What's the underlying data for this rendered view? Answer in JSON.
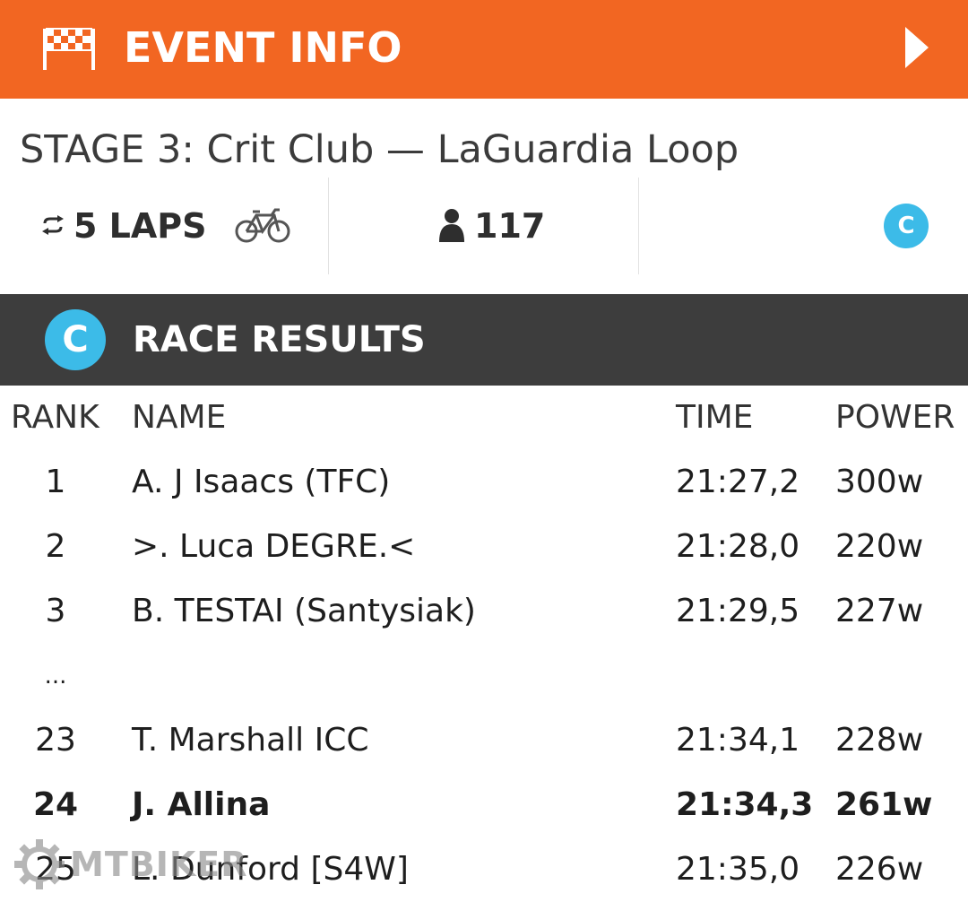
{
  "header": {
    "title": "EVENT INFO",
    "flag_icon": "checkered-flag-icon",
    "next_icon": "play-arrow-icon",
    "bg_color": "#f26622"
  },
  "event": {
    "stage_title": "STAGE 3: Crit Club — LaGuardia Loop",
    "laps": "5 LAPS",
    "riders": "117",
    "category_badge": "C"
  },
  "results_header": {
    "badge": "C",
    "title": "RACE RESULTS",
    "bg_color": "#3d3d3d",
    "badge_color": "#3cbbe8"
  },
  "table": {
    "columns": [
      "RANK",
      "NAME",
      "TIME",
      "POWER"
    ],
    "rows": [
      {
        "rank": "1",
        "name": "A. J Isaacs  (TFC)",
        "time": "21:27,2",
        "power": "300w"
      },
      {
        "rank": "2",
        "name": ">. Luca DEGRE.<",
        "time": "21:28,0",
        "power": "220w"
      },
      {
        "rank": "3",
        "name": "B. TESTAI (Santysiak)",
        "time": "21:29,5",
        "power": "227w"
      },
      {
        "rank": "...",
        "name": "",
        "time": "",
        "power": ""
      },
      {
        "rank": "23",
        "name": "T. Marshall ICC",
        "time": "21:34,1",
        "power": "228w"
      },
      {
        "rank": "24",
        "name": "J. Allina",
        "time": "21:34,3",
        "power": "261w",
        "highlight": true
      },
      {
        "rank": "25",
        "name": "L. Dunford [S4W]",
        "time": "21:35,0",
        "power": "226w"
      }
    ]
  },
  "watermark": {
    "text": "MTBIKER",
    "icon": "gear-logo-icon"
  }
}
